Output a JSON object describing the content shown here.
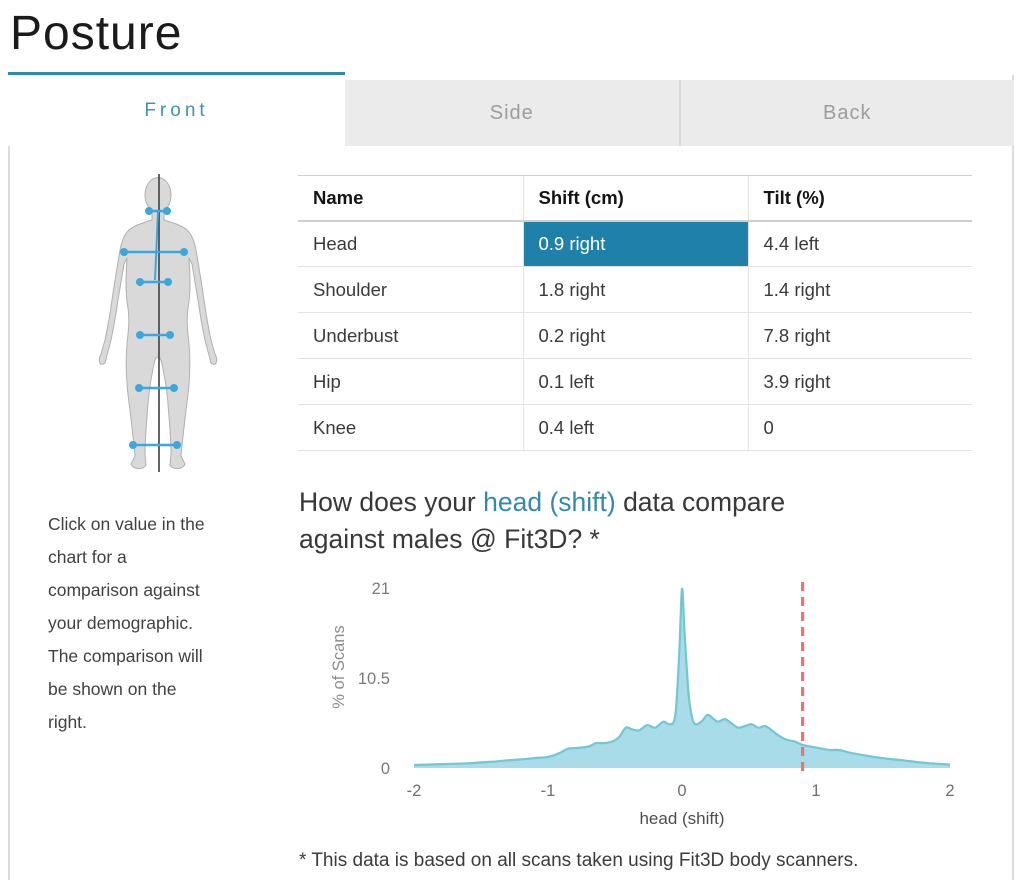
{
  "page": {
    "title": "Posture"
  },
  "tabs": [
    {
      "label": "Front",
      "active": true
    },
    {
      "label": "Side",
      "active": false
    },
    {
      "label": "Back",
      "active": false
    }
  ],
  "instructions": {
    "lines": [
      "Click on value in the",
      "chart for a",
      "comparison against",
      "your demographic.",
      "The comparison will",
      "be shown on the",
      "right."
    ]
  },
  "figure": {
    "landmarks": [
      "eyes",
      "head-axis",
      "shoulder",
      "underbust",
      "hip",
      "knee",
      "ankle"
    ],
    "marker_color": "#3ba8dc",
    "midline_color": "#3f3f3f"
  },
  "table": {
    "columns": [
      "Name",
      "Shift (cm)",
      "Tilt (%)"
    ],
    "rows": [
      {
        "name": "Head",
        "shift": "0.9 right",
        "tilt": "4.4 left",
        "shift_selected": true
      },
      {
        "name": "Shoulder",
        "shift": "1.8 right",
        "tilt": "1.4 right",
        "shift_selected": false
      },
      {
        "name": "Underbust",
        "shift": "0.2 right",
        "tilt": "7.8 right",
        "shift_selected": false
      },
      {
        "name": "Hip",
        "shift": "0.1 left",
        "tilt": "3.9 right",
        "shift_selected": false
      },
      {
        "name": "Knee",
        "shift": "0.4 left",
        "tilt": "0",
        "shift_selected": false
      }
    ],
    "selected_cell_color": "#1f81aa"
  },
  "comparison": {
    "heading_prefix": "How does your ",
    "heading_metric": "head (shift)",
    "heading_suffix": " data compare against males @ Fit3D? *",
    "footnote": "* This data is based on all scans taken using Fit3D body scanners."
  },
  "chart_data": {
    "type": "area",
    "title": "",
    "xlabel": "head (shift)",
    "ylabel": "% of Scans",
    "xlim": [
      -2,
      2
    ],
    "ylim": [
      0,
      21
    ],
    "x_ticks": [
      "-2",
      "-1",
      "0",
      "1",
      "2"
    ],
    "x_tick_values": [
      -2,
      -1,
      0,
      1,
      2
    ],
    "y_ticks": [
      "0",
      "10.5",
      "21"
    ],
    "y_tick_values": [
      0,
      10.5,
      21
    ],
    "grid": false,
    "legend": "none",
    "fill_color": "#a7dce8",
    "line_color": "#74c5d8",
    "marker": {
      "value": 0.9,
      "color": "#ea7470",
      "style": "dashed",
      "meaning": "user's head shift value"
    },
    "series": [
      {
        "name": "% of Scans",
        "points": [
          [
            -2.0,
            0.35
          ],
          [
            -1.9,
            0.4
          ],
          [
            -1.8,
            0.45
          ],
          [
            -1.7,
            0.5
          ],
          [
            -1.6,
            0.55
          ],
          [
            -1.5,
            0.65
          ],
          [
            -1.4,
            0.75
          ],
          [
            -1.3,
            0.9
          ],
          [
            -1.2,
            1.0
          ],
          [
            -1.1,
            1.15
          ],
          [
            -1.0,
            1.3
          ],
          [
            -0.92,
            1.7
          ],
          [
            -0.85,
            2.25
          ],
          [
            -0.78,
            2.35
          ],
          [
            -0.7,
            2.5
          ],
          [
            -0.64,
            2.9
          ],
          [
            -0.58,
            2.9
          ],
          [
            -0.52,
            3.1
          ],
          [
            -0.47,
            3.6
          ],
          [
            -0.42,
            4.7
          ],
          [
            -0.37,
            4.5
          ],
          [
            -0.32,
            4.4
          ],
          [
            -0.26,
            5.0
          ],
          [
            -0.2,
            4.7
          ],
          [
            -0.14,
            5.4
          ],
          [
            -0.09,
            5.1
          ],
          [
            -0.05,
            6.2
          ],
          [
            -0.02,
            13.5
          ],
          [
            0,
            20.9
          ],
          [
            0.02,
            15.5
          ],
          [
            0.05,
            8.5
          ],
          [
            0.08,
            5.6
          ],
          [
            0.11,
            5.1
          ],
          [
            0.15,
            5.5
          ],
          [
            0.19,
            6.2
          ],
          [
            0.23,
            5.8
          ],
          [
            0.27,
            5.4
          ],
          [
            0.32,
            5.7
          ],
          [
            0.37,
            5.2
          ],
          [
            0.42,
            4.7
          ],
          [
            0.47,
            4.9
          ],
          [
            0.52,
            5.1
          ],
          [
            0.57,
            4.7
          ],
          [
            0.62,
            4.9
          ],
          [
            0.67,
            4.4
          ],
          [
            0.72,
            3.8
          ],
          [
            0.78,
            3.3
          ],
          [
            0.84,
            3.1
          ],
          [
            0.9,
            2.7
          ],
          [
            0.96,
            2.5
          ],
          [
            1.03,
            2.3
          ],
          [
            1.1,
            2.1
          ],
          [
            1.17,
            2.1
          ],
          [
            1.25,
            1.8
          ],
          [
            1.35,
            1.5
          ],
          [
            1.45,
            1.25
          ],
          [
            1.55,
            1.05
          ],
          [
            1.65,
            0.9
          ],
          [
            1.75,
            0.7
          ],
          [
            1.85,
            0.55
          ],
          [
            1.95,
            0.45
          ],
          [
            2.0,
            0.4
          ]
        ]
      }
    ]
  },
  "colors": {
    "accent_teal": "#2e8bad",
    "active_tab_text": "#4191b3",
    "inactive_tab_bg": "#ebebeb",
    "inactive_tab_text": "#9c9c9c",
    "selected_cell": "#1f81aa",
    "link_text": "#3389ae",
    "chart_fill": "#a7dce8",
    "chart_line": "#74c5d8",
    "marker_red": "#ea7470"
  }
}
